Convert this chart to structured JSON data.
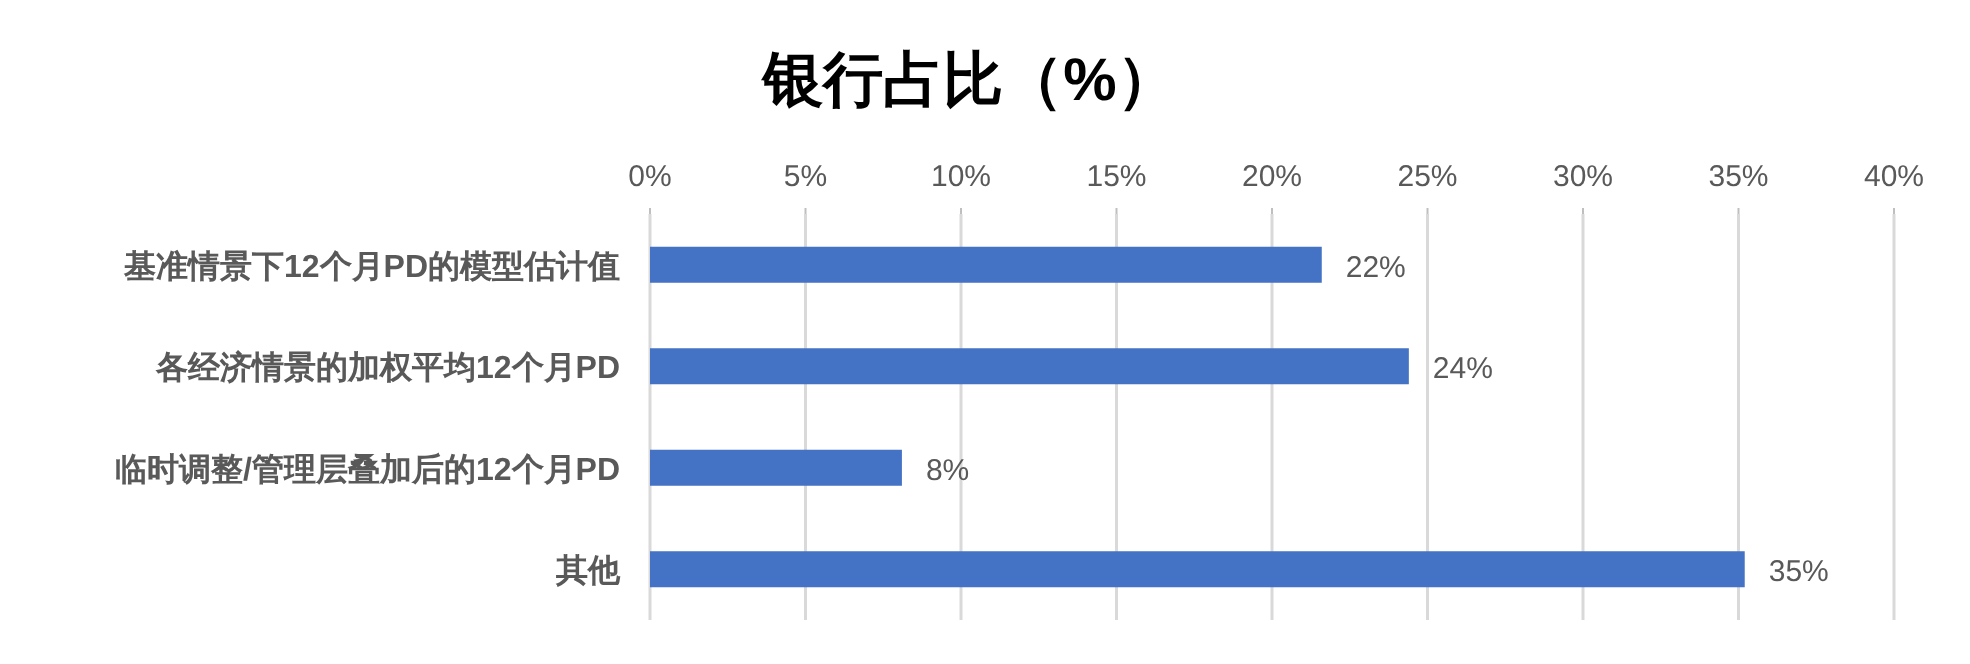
{
  "chart_data": {
    "type": "bar",
    "orientation": "horizontal",
    "title": "银行占比（%）",
    "categories": [
      "基准情景下12个月PD的模型估计值",
      "各经济情景的加权平均12个月PD",
      "临时调整/管理层叠加后的12个月PD",
      "其他"
    ],
    "series": [
      {
        "color": "#4472c4",
        "values": [
          21.6,
          24.4,
          8.1,
          35.2
        ],
        "value_labels": [
          "22%",
          "24%",
          "8%",
          "35%"
        ]
      }
    ],
    "xlim": [
      0,
      40
    ],
    "xticks": [
      {
        "value": 0,
        "label": "0%"
      },
      {
        "value": 5,
        "label": "5%"
      },
      {
        "value": 10,
        "label": "10%"
      },
      {
        "value": 15,
        "label": "15%"
      },
      {
        "value": 20,
        "label": "20%"
      },
      {
        "value": 25,
        "label": "25%"
      },
      {
        "value": 30,
        "label": "30%"
      },
      {
        "value": 35,
        "label": "35%"
      },
      {
        "value": 40,
        "label": "40%"
      }
    ],
    "grid": "x"
  }
}
